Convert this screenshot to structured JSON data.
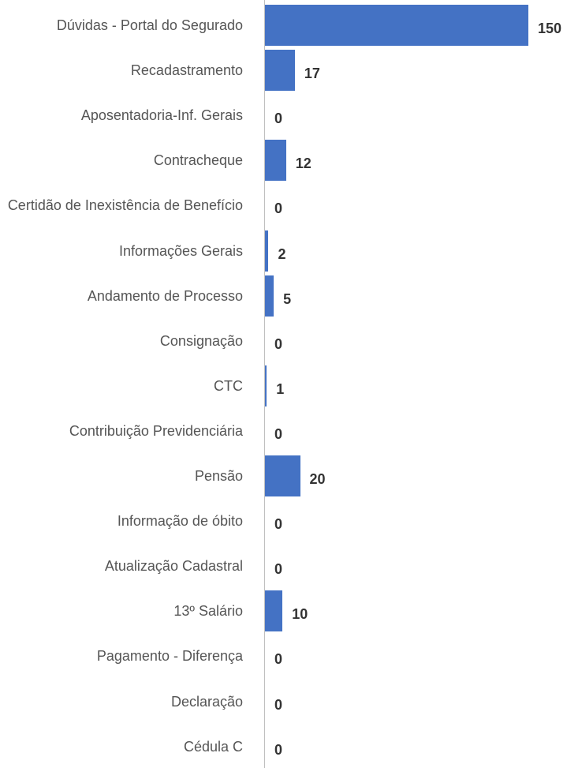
{
  "chart_data": {
    "type": "bar",
    "orientation": "horizontal",
    "categories": [
      "Dúvidas - Portal do Segurado",
      "Recadastramento",
      "Aposentadoria-Inf. Gerais",
      "Contracheque",
      "Certidão de Inexistência de Benefício",
      "Informações Gerais",
      "Andamento de Processo",
      "Consignação",
      "CTC",
      "Contribuição Previdenciária",
      "Pensão",
      "Informação de óbito",
      "Atualização Cadastral",
      "13º Salário",
      "Pagamento - Diferença",
      "Declaração",
      "Cédula C"
    ],
    "values": [
      150,
      17,
      0,
      12,
      0,
      2,
      5,
      0,
      1,
      0,
      20,
      0,
      0,
      10,
      0,
      0,
      0
    ],
    "color": "#4472c4",
    "xlim": [
      0,
      150
    ]
  }
}
